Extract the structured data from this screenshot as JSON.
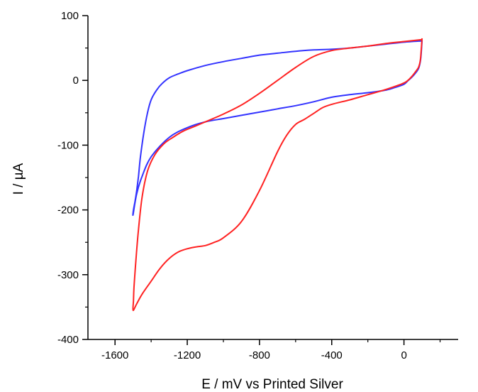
{
  "chart_data": {
    "type": "line",
    "title": "",
    "xlabel": "E / mV vs Printed Silver",
    "ylabel": "I / µA",
    "xlim": [
      -1750,
      300
    ],
    "ylim": [
      -400,
      100
    ],
    "x_ticks": [
      -1600,
      -1200,
      -800,
      -400,
      0
    ],
    "y_ticks": [
      100,
      0,
      -100,
      -200,
      -300,
      -400
    ],
    "grid": false,
    "legend": "none",
    "series": [
      {
        "color": "#3333ff",
        "x": [
          100,
          95,
          90,
          80,
          60,
          40,
          20,
          0,
          -50,
          -100,
          -200,
          -300,
          -400,
          -500,
          -600,
          -700,
          -800,
          -900,
          -1000,
          -1100,
          -1200,
          -1300,
          -1400,
          -1450,
          -1480,
          -1500,
          -1498,
          -1490,
          -1480,
          -1470,
          -1460,
          -1440,
          -1420,
          -1400,
          -1370,
          -1340,
          -1300,
          -1250,
          -1200,
          -1100,
          -1000,
          -900,
          -800,
          -700,
          -600,
          -500,
          -400,
          -300,
          -200,
          -100,
          0,
          100
        ],
        "y": [
          62,
          40,
          28,
          18,
          10,
          4,
          -1,
          -6,
          -11,
          -15,
          -19,
          -22,
          -26,
          -33,
          -39,
          -44,
          -49,
          -54,
          -59,
          -64,
          -73,
          -88,
          -118,
          -148,
          -175,
          -207,
          -200,
          -188,
          -170,
          -148,
          -120,
          -80,
          -50,
          -30,
          -15,
          -5,
          4,
          10,
          15,
          23,
          29,
          34,
          39,
          42,
          45,
          47,
          48,
          50,
          53,
          56,
          59,
          61
        ]
      },
      {
        "color": "#ff2222",
        "x": [
          100,
          95,
          90,
          80,
          60,
          40,
          0,
          -100,
          -200,
          -300,
          -400,
          -450,
          -500,
          -550,
          -600,
          -650,
          -700,
          -800,
          -900,
          -1000,
          -1050,
          -1100,
          -1150,
          -1200,
          -1250,
          -1300,
          -1350,
          -1400,
          -1450,
          -1480,
          -1500,
          -1498,
          -1495,
          -1485,
          -1470,
          -1450,
          -1420,
          -1380,
          -1330,
          -1280,
          -1220,
          -1150,
          -1100,
          -1000,
          -900,
          -800,
          -700,
          -600,
          -500,
          -400,
          -300,
          -200,
          -100,
          0,
          100
        ],
        "y": [
          65,
          45,
          30,
          20,
          12,
          5,
          -4,
          -14,
          -22,
          -30,
          -37,
          -42,
          -51,
          -60,
          -68,
          -85,
          -110,
          -170,
          -218,
          -243,
          -250,
          -255,
          -257,
          -260,
          -265,
          -275,
          -290,
          -310,
          -330,
          -345,
          -355,
          -340,
          -320,
          -280,
          -230,
          -180,
          -140,
          -115,
          -98,
          -88,
          -78,
          -70,
          -64,
          -52,
          -38,
          -20,
          0,
          20,
          37,
          46,
          50,
          53,
          57,
          60,
          63
        ]
      }
    ]
  }
}
